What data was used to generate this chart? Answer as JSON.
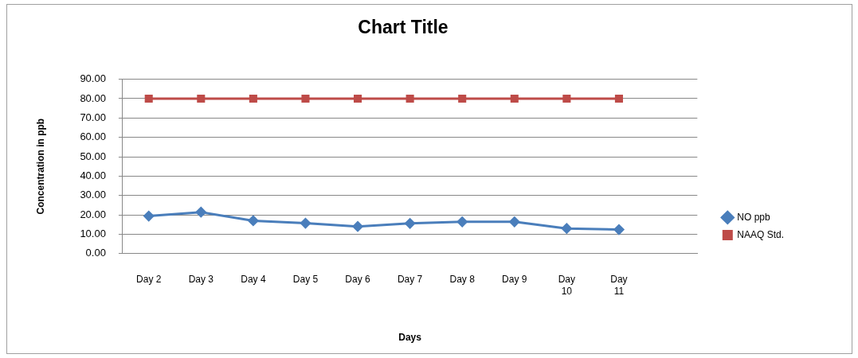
{
  "chart_data": {
    "type": "line",
    "title": "Chart Title",
    "xlabel": "Days",
    "ylabel": "Concentration in ppb",
    "categories": [
      "Day 2",
      "Day 3",
      "Day 4",
      "Day 5",
      "Day 6",
      "Day 7",
      "Day 8",
      "Day 9",
      "Day 10",
      "Day 11",
      null
    ],
    "series": [
      {
        "name": "NO ppb",
        "color": "#4a7ebb",
        "marker": "diamond",
        "values": [
          19.4,
          21.4,
          17.0,
          15.7,
          14.0,
          15.6,
          16.4,
          16.4,
          13.0,
          12.4,
          null
        ]
      },
      {
        "name": "NAAQ Std.",
        "color": "#be4b48",
        "marker": "square",
        "values": [
          80,
          80,
          80,
          80,
          80,
          80,
          80,
          80,
          80,
          80,
          null
        ]
      }
    ],
    "ylim": [
      0,
      90
    ],
    "yticks": [
      {
        "value": 0,
        "label": "0.00"
      },
      {
        "value": 10,
        "label": "10.00"
      },
      {
        "value": 20,
        "label": "20.00"
      },
      {
        "value": 30,
        "label": "30.00"
      },
      {
        "value": 40,
        "label": "40.00"
      },
      {
        "value": 50,
        "label": "50.00"
      },
      {
        "value": 60,
        "label": "60.00"
      },
      {
        "value": 70,
        "label": "70.00"
      },
      {
        "value": 80,
        "label": "80.00"
      },
      {
        "value": 90,
        "label": "90.00"
      }
    ],
    "grid": "y",
    "legend": "right",
    "line_style": "solid"
  }
}
